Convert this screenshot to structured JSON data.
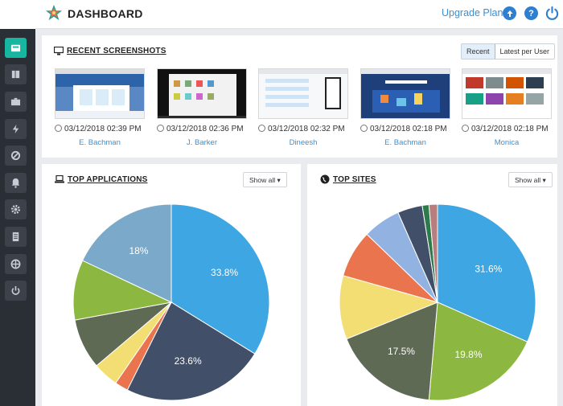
{
  "header": {
    "title": "DASHBOARD",
    "upgrade_label": "Upgrade Plan",
    "icons": [
      "upload-icon",
      "help-icon",
      "power-icon"
    ],
    "help_glyph": "?"
  },
  "sidebar": {
    "items": [
      "dashboard-icon",
      "reports-icon",
      "briefcase-icon",
      "activity-icon",
      "blocked-icon",
      "alerts-icon",
      "settings-icon",
      "document-icon",
      "globe-icon",
      "logout-icon"
    ]
  },
  "screenshots": {
    "title": "RECENT SCREENSHOTS",
    "toggle_recent": "Recent",
    "toggle_latest": "Latest per User",
    "items": [
      {
        "time": "03/12/2018 02:39 PM",
        "user": "E. Bachman"
      },
      {
        "time": "03/12/2018 02:36 PM",
        "user": "J. Barker"
      },
      {
        "time": "03/12/2018 02:32 PM",
        "user": "Dineesh"
      },
      {
        "time": "03/12/2018 02:18 PM",
        "user": "E. Bachman"
      },
      {
        "time": "03/12/2018 02:18 PM",
        "user": "Monica"
      }
    ]
  },
  "apps": {
    "title": "TOP APPLICATIONS",
    "dropdown": "Show all"
  },
  "sites": {
    "title": "TOP SITES",
    "dropdown": "Show all"
  },
  "colors": {
    "blue": "#3ea6e2",
    "navy": "#415068",
    "orange": "#e9744e",
    "yellow": "#f3de73",
    "olive": "#5f6a55",
    "green": "#8cb842",
    "lightblue": "#7aa9c9",
    "periwinkle": "#92b3e2",
    "darkgreen": "#2f7a4a",
    "pink": "#b87e7e",
    "teal": "#17b6a0"
  },
  "chart_data": [
    {
      "type": "pie",
      "title": "TOP APPLICATIONS",
      "slices": [
        {
          "value": 33.8,
          "label": "33.8%",
          "color": "#3ea6e2"
        },
        {
          "value": 23.6,
          "label": "23.6%",
          "color": "#415068"
        },
        {
          "value": 2.2,
          "label": "",
          "color": "#e9744e"
        },
        {
          "value": 4.2,
          "label": "",
          "color": "#f3de73"
        },
        {
          "value": 8.3,
          "label": "",
          "color": "#5f6a55"
        },
        {
          "value": 9.9,
          "label": "",
          "color": "#8cb842"
        },
        {
          "value": 18.0,
          "label": "18%",
          "color": "#7aa9c9"
        }
      ]
    },
    {
      "type": "pie",
      "title": "TOP SITES",
      "slices": [
        {
          "value": 31.6,
          "label": "31.6%",
          "color": "#3ea6e2"
        },
        {
          "value": 19.8,
          "label": "19.8%",
          "color": "#8cb842"
        },
        {
          "value": 17.5,
          "label": "17.5%",
          "color": "#5f6a55"
        },
        {
          "value": 10.5,
          "label": "",
          "color": "#f3de73"
        },
        {
          "value": 7.8,
          "label": "",
          "color": "#e9744e"
        },
        {
          "value": 6.2,
          "label": "",
          "color": "#92b3e2"
        },
        {
          "value": 4.1,
          "label": "",
          "color": "#415068"
        },
        {
          "value": 1.1,
          "label": "",
          "color": "#2f7a4a"
        },
        {
          "value": 1.4,
          "label": "",
          "color": "#b87e7e"
        }
      ]
    }
  ]
}
